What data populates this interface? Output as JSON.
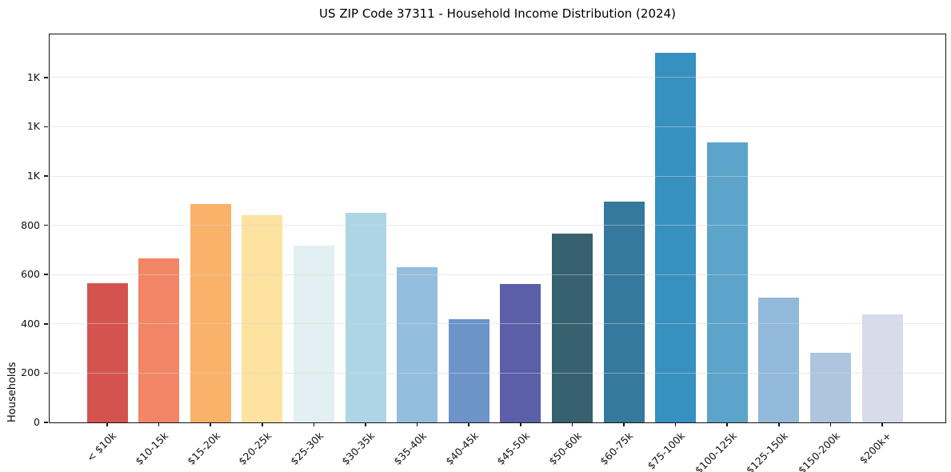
{
  "chart_data": {
    "type": "bar",
    "title": "US ZIP Code 37311 - Household Income Distribution (2024)",
    "xlabel": "",
    "ylabel": "Households",
    "categories": [
      "< $10k",
      "$10-15k",
      "$15-20k",
      "$20-25k",
      "$25-30k",
      "$30-35k",
      "$35-40k",
      "$40-45k",
      "$45-50k",
      "$50-60k",
      "$60-75k",
      "$75-100k",
      "$100-125k",
      "$125-150k",
      "$150-200k",
      "$200k+"
    ],
    "values": [
      565,
      665,
      887,
      840,
      717,
      851,
      629,
      419,
      561,
      768,
      896,
      1500,
      1137,
      506,
      281,
      438
    ],
    "bar_colors": [
      "#d5534e",
      "#f28566",
      "#fab169",
      "#fde39f",
      "#e3f0f3",
      "#aed5e6",
      "#93bedd",
      "#6c94c9",
      "#5a5fa8",
      "#36616f",
      "#35799e",
      "#3690c0",
      "#5ca4ca",
      "#91b9da",
      "#aec5df",
      "#d8dbe9"
    ],
    "ylim": [
      0,
      1575
    ],
    "yticks": {
      "values": [
        0,
        200,
        400,
        600,
        800,
        1000,
        1200,
        1400
      ],
      "labels": [
        "0",
        "200",
        "400",
        "600",
        "800",
        "1K",
        "1K",
        "1K"
      ]
    },
    "grid": true,
    "legend": false
  },
  "colors": {
    "background": "#ffffff",
    "spine": "#141414",
    "grid": "#d8d8d8",
    "text": "#111111"
  }
}
